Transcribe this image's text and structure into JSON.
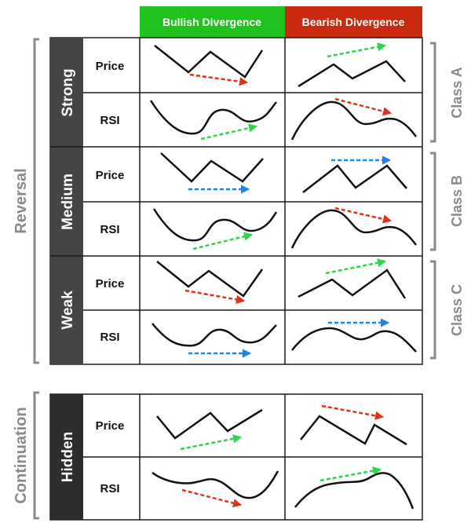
{
  "headers": {
    "bullish": "Bullish Divergence",
    "bearish": "Bearish Divergence"
  },
  "side_labels": {
    "reversal": "Reversal",
    "continuation": "Continuation"
  },
  "class_labels": [
    "Class A",
    "Class B",
    "Class C"
  ],
  "groups": [
    "Strong",
    "Medium",
    "Weak",
    "Hidden"
  ],
  "row_labels": {
    "price": "Price",
    "rsi": "RSI"
  },
  "colors": {
    "bullish_header": "#22c21e",
    "bearish_header": "#c8290f",
    "group_bg": "#454545",
    "hidden_bg": "#2e2e2e",
    "grid": "#1a1a1a",
    "label_gray": "#8a8a8a",
    "arrow_red": "#e0321a",
    "arrow_green": "#2ed44a",
    "arrow_blue": "#1e86e8"
  }
}
